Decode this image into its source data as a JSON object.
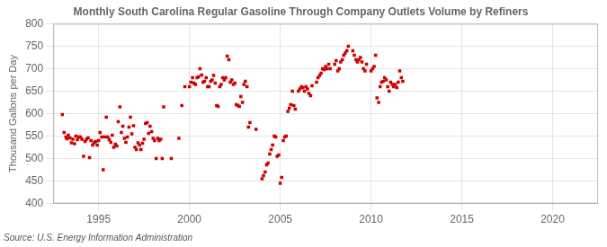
{
  "chart_data": {
    "type": "scatter",
    "title": "Monthly South Carolina Regular Gasoline Through Company Outlets Volume by Refiners",
    "ylabel": "Thousand Gallons per Day",
    "annotation": "Source: U.S. Energy Information Administration",
    "color": "#cc0000",
    "marker": "square",
    "grid": true,
    "xlim": [
      1992.5,
      2022.5
    ],
    "ylim": [
      400,
      800
    ],
    "xticks": [
      1995,
      2000,
      2005,
      2010,
      2015,
      2020
    ],
    "yticks": [
      400,
      450,
      500,
      550,
      600,
      650,
      700,
      750,
      800
    ],
    "x": [
      1993.0,
      1993.1,
      1993.2,
      1993.25,
      1993.33,
      1993.42,
      1993.5,
      1993.58,
      1993.67,
      1993.75,
      1993.83,
      1993.92,
      1994.0,
      1994.08,
      1994.17,
      1994.25,
      1994.33,
      1994.42,
      1994.5,
      1994.58,
      1994.67,
      1994.75,
      1994.83,
      1994.92,
      1995.0,
      1995.08,
      1995.17,
      1995.25,
      1995.33,
      1995.42,
      1995.5,
      1995.58,
      1995.67,
      1995.75,
      1995.83,
      1995.92,
      1996.0,
      1996.08,
      1996.17,
      1996.25,
      1996.33,
      1996.42,
      1996.5,
      1996.58,
      1996.67,
      1996.75,
      1996.83,
      1996.92,
      1997.0,
      1997.08,
      1997.17,
      1997.25,
      1997.33,
      1997.42,
      1997.5,
      1997.58,
      1997.67,
      1997.75,
      1997.83,
      1997.92,
      1998.0,
      1998.08,
      1998.17,
      1998.25,
      1998.33,
      1998.42,
      1998.5,
      1998.58,
      1999.0,
      1999.42,
      1999.58,
      1999.75,
      2000.0,
      2000.08,
      2000.17,
      2000.25,
      2000.33,
      2000.42,
      2000.5,
      2000.58,
      2000.67,
      2000.75,
      2000.83,
      2000.92,
      2001.0,
      2001.08,
      2001.17,
      2001.25,
      2001.33,
      2001.42,
      2001.5,
      2001.58,
      2001.67,
      2001.75,
      2001.83,
      2001.92,
      2002.0,
      2002.08,
      2002.17,
      2002.25,
      2002.33,
      2002.42,
      2002.5,
      2002.58,
      2002.67,
      2002.75,
      2002.83,
      2002.92,
      2003.0,
      2003.08,
      2003.17,
      2003.25,
      2003.33,
      2003.67,
      2004.0,
      2004.08,
      2004.17,
      2004.25,
      2004.33,
      2004.42,
      2004.5,
      2004.58,
      2004.67,
      2004.75,
      2004.83,
      2004.92,
      2005.0,
      2005.08,
      2005.17,
      2005.25,
      2005.33,
      2005.42,
      2005.5,
      2005.58,
      2005.67,
      2005.75,
      2005.83,
      2006.0,
      2006.08,
      2006.17,
      2006.25,
      2006.33,
      2006.42,
      2006.5,
      2006.58,
      2006.67,
      2006.75,
      2007.0,
      2007.08,
      2007.17,
      2007.25,
      2007.33,
      2007.42,
      2007.5,
      2007.58,
      2007.67,
      2007.75,
      2008.0,
      2008.08,
      2008.17,
      2008.25,
      2008.33,
      2008.42,
      2008.5,
      2008.58,
      2008.67,
      2008.75,
      2009.0,
      2009.08,
      2009.17,
      2009.25,
      2009.33,
      2009.42,
      2009.5,
      2009.58,
      2009.67,
      2009.75,
      2010.0,
      2010.08,
      2010.17,
      2010.25,
      2010.33,
      2010.42,
      2010.5,
      2010.58,
      2010.67,
      2010.75,
      2010.83,
      2010.92,
      2011.0,
      2011.08,
      2011.17,
      2011.25,
      2011.33,
      2011.42,
      2011.5,
      2011.58,
      2011.67,
      2011.75
    ],
    "values": [
      598,
      558,
      548,
      544,
      552,
      546,
      535,
      543,
      533,
      550,
      542,
      548,
      548,
      543,
      505,
      538,
      543,
      546,
      502,
      540,
      530,
      535,
      538,
      530,
      540,
      558,
      548,
      475,
      548,
      592,
      548,
      542,
      536,
      552,
      525,
      532,
      528,
      582,
      615,
      558,
      572,
      545,
      536,
      548,
      570,
      592,
      555,
      573,
      525,
      520,
      535,
      530,
      520,
      534,
      543,
      578,
      580,
      556,
      572,
      560,
      545,
      540,
      500,
      545,
      540,
      543,
      500,
      615,
      500,
      545,
      618,
      660,
      660,
      670,
      680,
      668,
      665,
      680,
      682,
      700,
      686,
      670,
      672,
      680,
      660,
      660,
      672,
      675,
      685,
      668,
      618,
      616,
      660,
      665,
      680,
      675,
      680,
      728,
      720,
      670,
      675,
      665,
      668,
      620,
      618,
      616,
      638,
      625,
      665,
      672,
      660,
      570,
      580,
      565,
      455,
      462,
      470,
      486,
      490,
      510,
      520,
      530,
      550,
      548,
      505,
      508,
      445,
      458,
      540,
      548,
      550,
      605,
      612,
      620,
      650,
      618,
      610,
      650,
      655,
      660,
      658,
      650,
      660,
      655,
      645,
      640,
      662,
      670,
      680,
      685,
      690,
      700,
      698,
      705,
      700,
      710,
      700,
      710,
      718,
      695,
      700,
      715,
      720,
      730,
      735,
      740,
      750,
      740,
      730,
      720,
      715,
      720,
      725,
      715,
      700,
      695,
      710,
      695,
      700,
      705,
      730,
      635,
      625,
      660,
      670,
      672,
      680,
      675,
      660,
      650,
      670,
      665,
      660,
      665,
      658,
      670,
      695,
      680,
      672
    ]
  }
}
